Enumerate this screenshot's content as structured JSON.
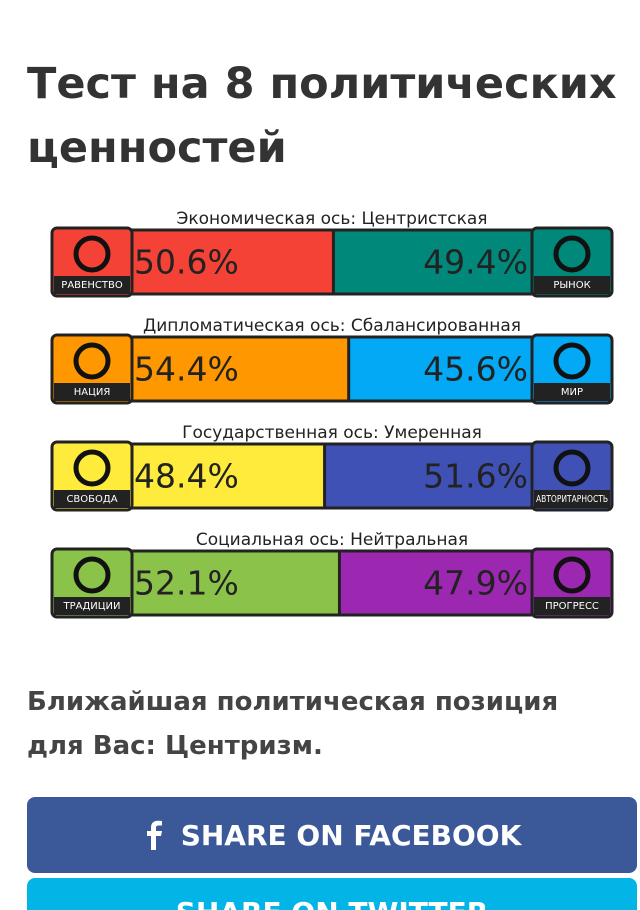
{
  "title": "Тест на 8 политических ценностей",
  "axes": [
    {
      "label": "Экономическая ось: Центристская",
      "values": [
        50.6,
        49.4
      ],
      "value_labels": [
        "50.6%",
        "49.4%"
      ],
      "icon_labels": [
        "РАВЕНСТВО",
        "РЫНОК"
      ],
      "colors": [
        "#f44336",
        "#00897b"
      ]
    },
    {
      "label": "Дипломатическая ось: Сбалансированная",
      "values": [
        54.4,
        45.6
      ],
      "value_labels": [
        "54.4%",
        "45.6%"
      ],
      "icon_labels": [
        "НАЦИЯ",
        "МИР"
      ],
      "colors": [
        "#ff9800",
        "#03a9f4"
      ]
    },
    {
      "label": "Государственная ось: Умеренная",
      "values": [
        48.4,
        51.6
      ],
      "value_labels": [
        "48.4%",
        "51.6%"
      ],
      "icon_labels": [
        "СВОБОДА",
        "АВТОРИТАРНОСТЬ"
      ],
      "colors": [
        "#ffeb3b",
        "#3f51b5"
      ]
    },
    {
      "label": "Социальная ось: Нейтральная",
      "values": [
        52.1,
        47.9
      ],
      "value_labels": [
        "52.1%",
        "47.9%"
      ],
      "icon_labels": [
        "ТРАДИЦИИ",
        "ПРОГРЕСС"
      ],
      "colors": [
        "#8bc34a",
        "#9c27b0"
      ]
    }
  ],
  "result": "Ближайшая политическая позиция для Вас: Центризм.",
  "buttons": [
    "SHARE ON FACEBOOK",
    "SHARE ON TWITTER"
  ]
}
